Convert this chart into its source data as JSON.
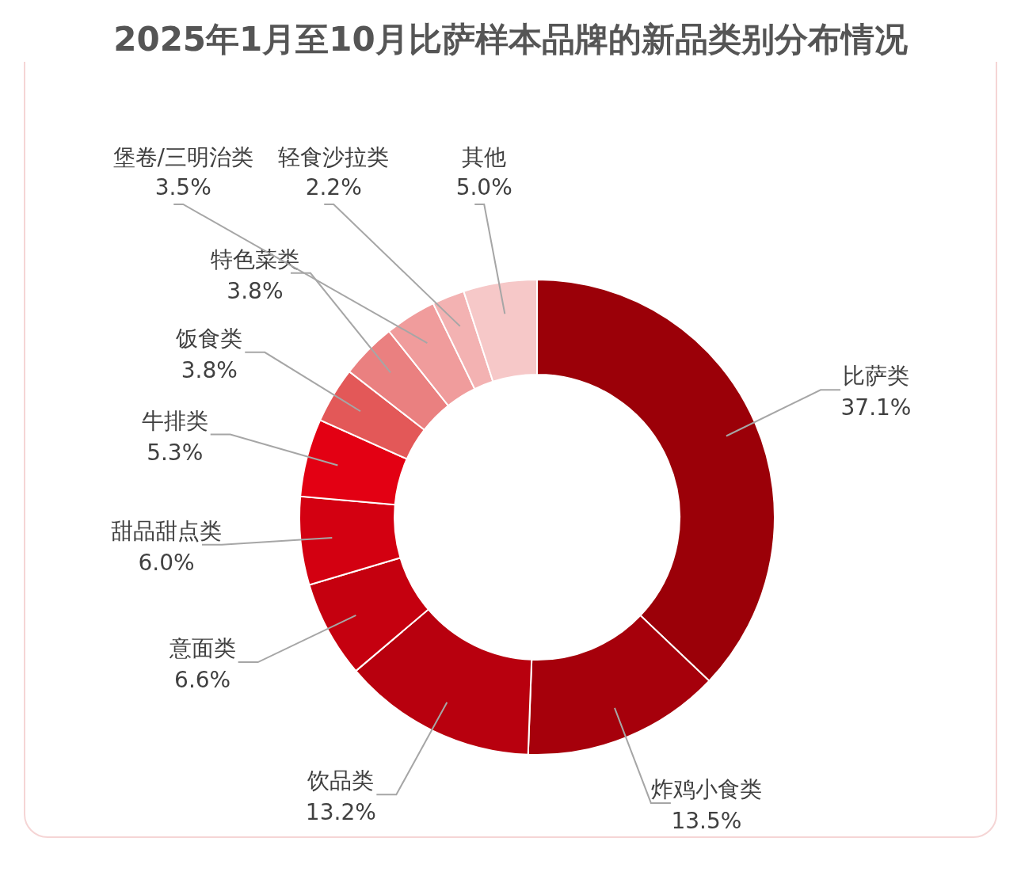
{
  "chart_data": {
    "type": "donut",
    "title": "2025年1月至10月比萨样本品牌的新品类别分布情况",
    "categories": [
      "比萨类",
      "炸鸡小食类",
      "饮品类",
      "意面类",
      "甜品甜点类",
      "牛排类",
      "饭食类",
      "特色菜类",
      "堡卷/三明治类",
      "轻食沙拉类",
      "其他"
    ],
    "values": [
      37.1,
      13.5,
      13.2,
      6.6,
      6.0,
      5.3,
      3.8,
      3.8,
      3.5,
      2.2,
      5.0
    ],
    "value_labels": [
      "37.1%",
      "13.5%",
      "13.2%",
      "6.6%",
      "6.0%",
      "5.3%",
      "3.8%",
      "3.8%",
      "3.5%",
      "2.2%",
      "5.0%"
    ],
    "colors": [
      "#9b0008",
      "#a6000b",
      "#b8000e",
      "#c5000f",
      "#d30011",
      "#e30013",
      "#e35858",
      "#ea8080",
      "#f09c9c",
      "#f3b2b2",
      "#f6c8c8"
    ],
    "legend": false
  }
}
